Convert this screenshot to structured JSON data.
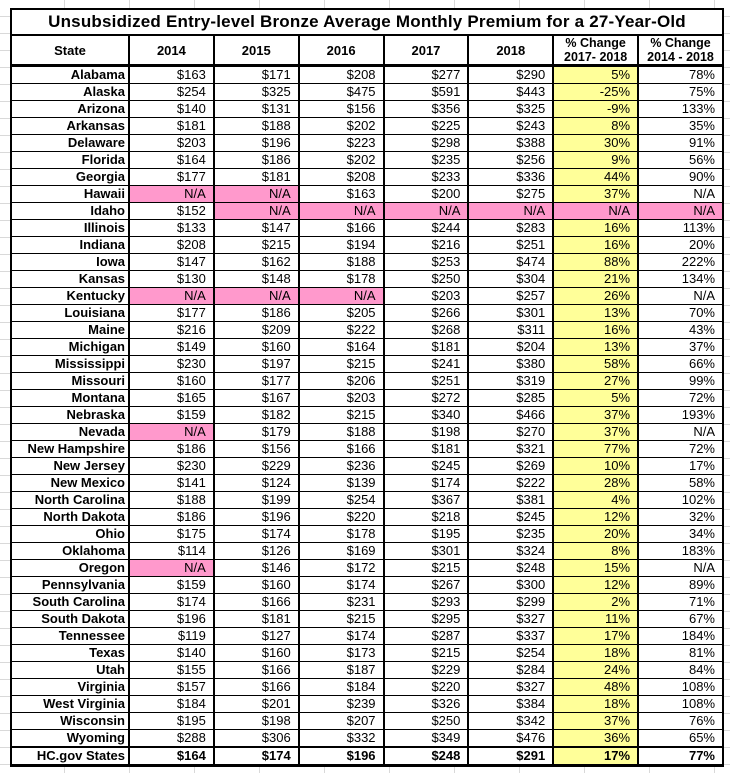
{
  "colors": {
    "highlight_yellow": "#FFFF99",
    "highlight_pink": "#FF99CC",
    "border": "#000000",
    "gridline": "#D9D9D9"
  },
  "header": {
    "state": "State",
    "years": [
      "2014",
      "2015",
      "2016",
      "2017",
      "2018"
    ],
    "pct_change_17_18": {
      "line1": "% Change",
      "line2": "2017- 2018"
    },
    "pct_change_14_18": {
      "line1": "% Change",
      "line2": "2014 - 2018"
    }
  },
  "chart_data": {
    "type": "table",
    "title": "Unsubsidized Entry-level Bronze Average Monthly Premium for a 27-Year-Old",
    "columns": [
      "State",
      "2014",
      "2015",
      "2016",
      "2017",
      "2018",
      "% Change 2017- 2018",
      "% Change 2014 - 2018"
    ],
    "highlight_legend": {
      "yellow_column": "% Change 2017- 2018",
      "pink_cells_meaning": "N/A highlighted cells"
    },
    "rows": [
      {
        "state": "Alabama",
        "values": [
          "$163",
          "$171",
          "$208",
          "$277",
          "$290",
          "5%",
          "78%"
        ],
        "pink": []
      },
      {
        "state": "Alaska",
        "values": [
          "$254",
          "$325",
          "$475",
          "$591",
          "$443",
          "-25%",
          "75%"
        ],
        "pink": []
      },
      {
        "state": "Arizona",
        "values": [
          "$140",
          "$131",
          "$156",
          "$356",
          "$325",
          "-9%",
          "133%"
        ],
        "pink": []
      },
      {
        "state": "Arkansas",
        "values": [
          "$181",
          "$188",
          "$202",
          "$225",
          "$243",
          "8%",
          "35%"
        ],
        "pink": []
      },
      {
        "state": "Delaware",
        "values": [
          "$203",
          "$196",
          "$223",
          "$298",
          "$388",
          "30%",
          "91%"
        ],
        "pink": []
      },
      {
        "state": "Florida",
        "values": [
          "$164",
          "$186",
          "$202",
          "$235",
          "$256",
          "9%",
          "56%"
        ],
        "pink": []
      },
      {
        "state": "Georgia",
        "values": [
          "$177",
          "$181",
          "$208",
          "$233",
          "$336",
          "44%",
          "90%"
        ],
        "pink": []
      },
      {
        "state": "Hawaii",
        "values": [
          "N/A",
          "N/A",
          "$163",
          "$200",
          "$275",
          "37%",
          "N/A"
        ],
        "pink": [
          0,
          1
        ]
      },
      {
        "state": "Idaho",
        "values": [
          "$152",
          "N/A",
          "N/A",
          "N/A",
          "N/A",
          "N/A",
          "N/A"
        ],
        "pink": [
          1,
          2,
          3,
          4,
          5,
          6
        ]
      },
      {
        "state": "Illinois",
        "values": [
          "$133",
          "$147",
          "$166",
          "$244",
          "$283",
          "16%",
          "113%"
        ],
        "pink": []
      },
      {
        "state": "Indiana",
        "values": [
          "$208",
          "$215",
          "$194",
          "$216",
          "$251",
          "16%",
          "20%"
        ],
        "pink": []
      },
      {
        "state": "Iowa",
        "values": [
          "$147",
          "$162",
          "$188",
          "$253",
          "$474",
          "88%",
          "222%"
        ],
        "pink": []
      },
      {
        "state": "Kansas",
        "values": [
          "$130",
          "$148",
          "$178",
          "$250",
          "$304",
          "21%",
          "134%"
        ],
        "pink": []
      },
      {
        "state": "Kentucky",
        "values": [
          "N/A",
          "N/A",
          "N/A",
          "$203",
          "$257",
          "26%",
          "N/A"
        ],
        "pink": [
          0,
          1,
          2
        ]
      },
      {
        "state": "Louisiana",
        "values": [
          "$177",
          "$186",
          "$205",
          "$266",
          "$301",
          "13%",
          "70%"
        ],
        "pink": []
      },
      {
        "state": "Maine",
        "values": [
          "$216",
          "$209",
          "$222",
          "$268",
          "$311",
          "16%",
          "43%"
        ],
        "pink": []
      },
      {
        "state": "Michigan",
        "values": [
          "$149",
          "$160",
          "$164",
          "$181",
          "$204",
          "13%",
          "37%"
        ],
        "pink": []
      },
      {
        "state": "Mississippi",
        "values": [
          "$230",
          "$197",
          "$215",
          "$241",
          "$380",
          "58%",
          "66%"
        ],
        "pink": []
      },
      {
        "state": "Missouri",
        "values": [
          "$160",
          "$177",
          "$206",
          "$251",
          "$319",
          "27%",
          "99%"
        ],
        "pink": []
      },
      {
        "state": "Montana",
        "values": [
          "$165",
          "$167",
          "$203",
          "$272",
          "$285",
          "5%",
          "72%"
        ],
        "pink": []
      },
      {
        "state": "Nebraska",
        "values": [
          "$159",
          "$182",
          "$215",
          "$340",
          "$466",
          "37%",
          "193%"
        ],
        "pink": []
      },
      {
        "state": "Nevada",
        "values": [
          "N/A",
          "$179",
          "$188",
          "$198",
          "$270",
          "37%",
          "N/A"
        ],
        "pink": [
          0
        ]
      },
      {
        "state": "New Hampshire",
        "values": [
          "$186",
          "$156",
          "$166",
          "$181",
          "$321",
          "77%",
          "72%"
        ],
        "pink": []
      },
      {
        "state": "New Jersey",
        "values": [
          "$230",
          "$229",
          "$236",
          "$245",
          "$269",
          "10%",
          "17%"
        ],
        "pink": []
      },
      {
        "state": "New Mexico",
        "values": [
          "$141",
          "$124",
          "$139",
          "$174",
          "$222",
          "28%",
          "58%"
        ],
        "pink": []
      },
      {
        "state": "North Carolina",
        "values": [
          "$188",
          "$199",
          "$254",
          "$367",
          "$381",
          "4%",
          "102%"
        ],
        "pink": []
      },
      {
        "state": "North Dakota",
        "values": [
          "$186",
          "$196",
          "$220",
          "$218",
          "$245",
          "12%",
          "32%"
        ],
        "pink": []
      },
      {
        "state": "Ohio",
        "values": [
          "$175",
          "$174",
          "$178",
          "$195",
          "$235",
          "20%",
          "34%"
        ],
        "pink": []
      },
      {
        "state": "Oklahoma",
        "values": [
          "$114",
          "$126",
          "$169",
          "$301",
          "$324",
          "8%",
          "183%"
        ],
        "pink": []
      },
      {
        "state": "Oregon",
        "values": [
          "N/A",
          "$146",
          "$172",
          "$215",
          "$248",
          "15%",
          "N/A"
        ],
        "pink": [
          0
        ]
      },
      {
        "state": "Pennsylvania",
        "values": [
          "$159",
          "$160",
          "$174",
          "$267",
          "$300",
          "12%",
          "89%"
        ],
        "pink": []
      },
      {
        "state": "South Carolina",
        "values": [
          "$174",
          "$166",
          "$231",
          "$293",
          "$299",
          "2%",
          "71%"
        ],
        "pink": []
      },
      {
        "state": "South Dakota",
        "values": [
          "$196",
          "$181",
          "$215",
          "$295",
          "$327",
          "11%",
          "67%"
        ],
        "pink": []
      },
      {
        "state": "Tennessee",
        "values": [
          "$119",
          "$127",
          "$174",
          "$287",
          "$337",
          "17%",
          "184%"
        ],
        "pink": []
      },
      {
        "state": "Texas",
        "values": [
          "$140",
          "$160",
          "$173",
          "$215",
          "$254",
          "18%",
          "81%"
        ],
        "pink": []
      },
      {
        "state": "Utah",
        "values": [
          "$155",
          "$166",
          "$187",
          "$229",
          "$284",
          "24%",
          "84%"
        ],
        "pink": []
      },
      {
        "state": "Virginia",
        "values": [
          "$157",
          "$166",
          "$184",
          "$220",
          "$327",
          "48%",
          "108%"
        ],
        "pink": []
      },
      {
        "state": "West Virginia",
        "values": [
          "$184",
          "$201",
          "$239",
          "$326",
          "$384",
          "18%",
          "108%"
        ],
        "pink": []
      },
      {
        "state": "Wisconsin",
        "values": [
          "$195",
          "$198",
          "$207",
          "$250",
          "$342",
          "37%",
          "76%"
        ],
        "pink": []
      },
      {
        "state": "Wyoming",
        "values": [
          "$288",
          "$306",
          "$332",
          "$349",
          "$476",
          "36%",
          "65%"
        ],
        "pink": []
      }
    ],
    "summary_row": {
      "state": "HC.gov States",
      "values": [
        "$164",
        "$174",
        "$196",
        "$248",
        "$291",
        "17%",
        "77%"
      ],
      "pink": []
    }
  }
}
